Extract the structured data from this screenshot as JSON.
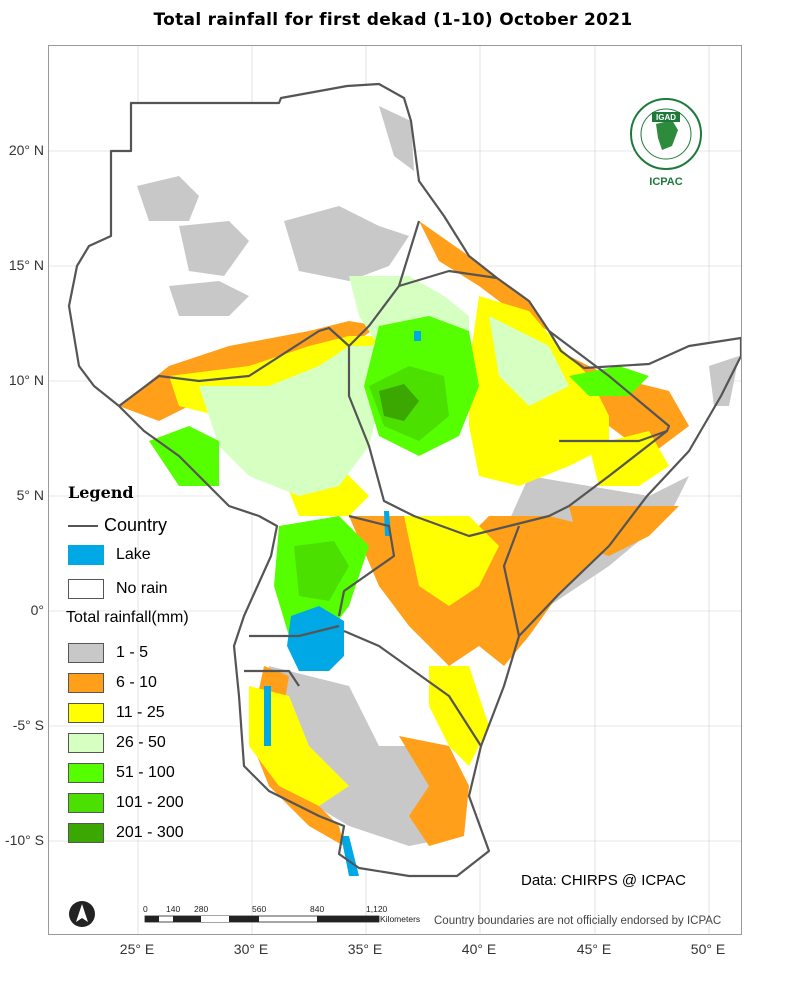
{
  "title": "Total rainfall  for  first  dekad (1-10)  October  2021",
  "axes": {
    "x_ticks": [
      "25° E",
      "30° E",
      "35° E",
      "40° E",
      "45° E",
      "50° E"
    ],
    "y_ticks": [
      "20° N",
      "15° N",
      "10° N",
      "5° N",
      "0°",
      "-5° S",
      "-10° S"
    ]
  },
  "legend": {
    "title": "Legend",
    "country_label": "Country",
    "lake_label": "Lake",
    "no_rain_label": "No rain",
    "rainfall_title": "Total rainfall(mm)",
    "classes": [
      {
        "label": "1 - 5",
        "color": "#c8c8c8"
      },
      {
        "label": "6 - 10",
        "color": "#ff9f1a"
      },
      {
        "label": "11 - 25",
        "color": "#ffff00"
      },
      {
        "label": "26 - 50",
        "color": "#d6ffc2"
      },
      {
        "label": "51 - 100",
        "color": "#55ff00"
      },
      {
        "label": "101 - 200",
        "color": "#4ce000"
      },
      {
        "label": "201 - 300",
        "color": "#3aa800"
      }
    ],
    "lake_color": "#00a9e6",
    "no_rain_color": "#ffffff",
    "country_color": "#555555"
  },
  "logo": {
    "badge": "IGAD",
    "name": "ICPAC"
  },
  "scale_bar": {
    "labels": [
      "0",
      "140",
      "280",
      "560",
      "840",
      "1,120"
    ],
    "unit": "Kilometers"
  },
  "credit": "Data: CHIRPS @ ICPAC",
  "disclaimer": "Country boundaries are not officially endorsed by ICPAC"
}
